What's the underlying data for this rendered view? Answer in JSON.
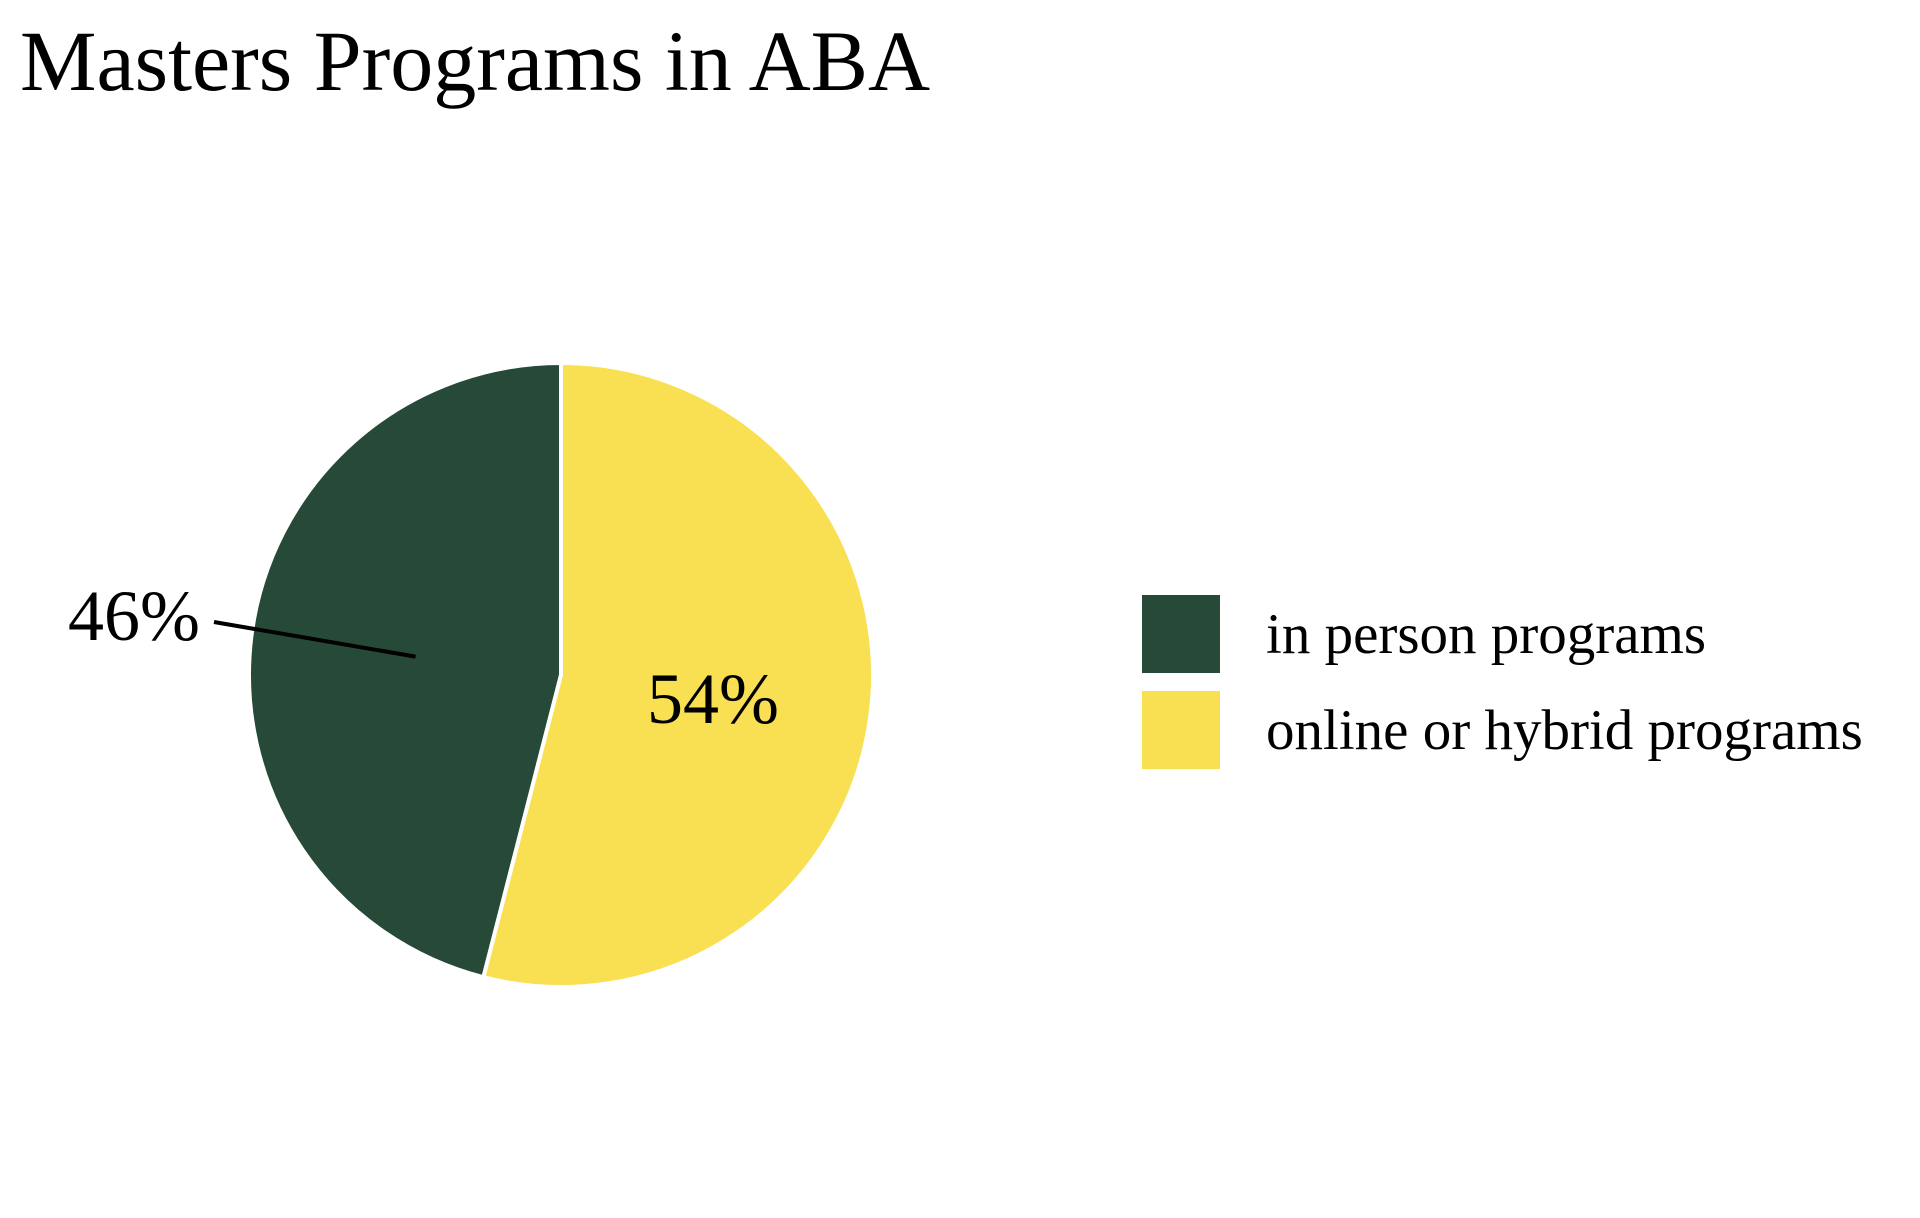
{
  "chart_data": {
    "type": "pie",
    "title": "Masters Programs in ABA",
    "slices": [
      {
        "label": "in person programs",
        "value": 46,
        "value_label": "46%",
        "color": "#264a37"
      },
      {
        "label": "online or hybrid programs",
        "value": 54,
        "value_label": "54%",
        "color": "#f9e052"
      }
    ],
    "start_angle": "12 o'clock",
    "direction": "counterclockwise for first slice",
    "legend_position": "right"
  }
}
